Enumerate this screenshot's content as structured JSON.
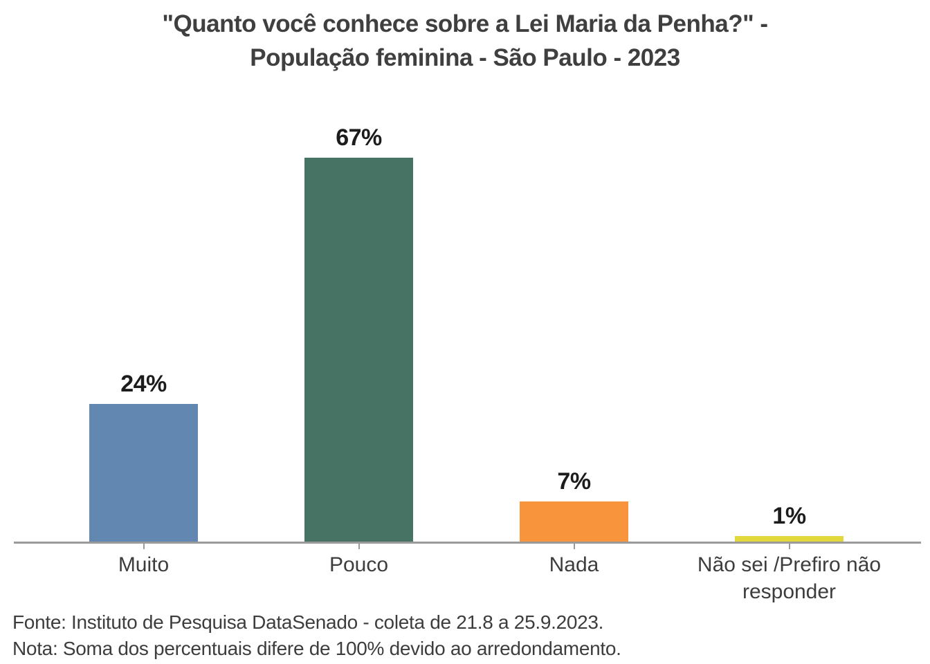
{
  "chart_data": {
    "type": "bar",
    "title": "\"Quanto você conhece sobre a Lei Maria da Penha?\" - População feminina - São Paulo - 2023",
    "title_lines": [
      "\"Quanto você conhece sobre a Lei Maria da Penha?\" -",
      "População feminina - São Paulo - 2023"
    ],
    "categories": [
      "Muito",
      "Pouco",
      "Nada",
      "Não sei /Prefiro não responder"
    ],
    "values": [
      24,
      67,
      7,
      1
    ],
    "value_labels": [
      "24%",
      "67%",
      "7%",
      "1%"
    ],
    "colors": [
      "#6288b2",
      "#467363",
      "#f8943c",
      "#e2d83b"
    ],
    "xlabel": "",
    "ylabel": "",
    "ylim": [
      0,
      100
    ],
    "grid": "off",
    "legend": "none",
    "y_axis_visible": false,
    "axis_color": "#9a9a9a",
    "text_color": "#3d3d3d"
  },
  "footer": {
    "fonte": "Fonte: Instituto de Pesquisa DataSenado - coleta de 21.8 a 25.9.2023.",
    "nota": "Nota: Soma dos percentuais difere de 100% devido ao arredondamento."
  }
}
